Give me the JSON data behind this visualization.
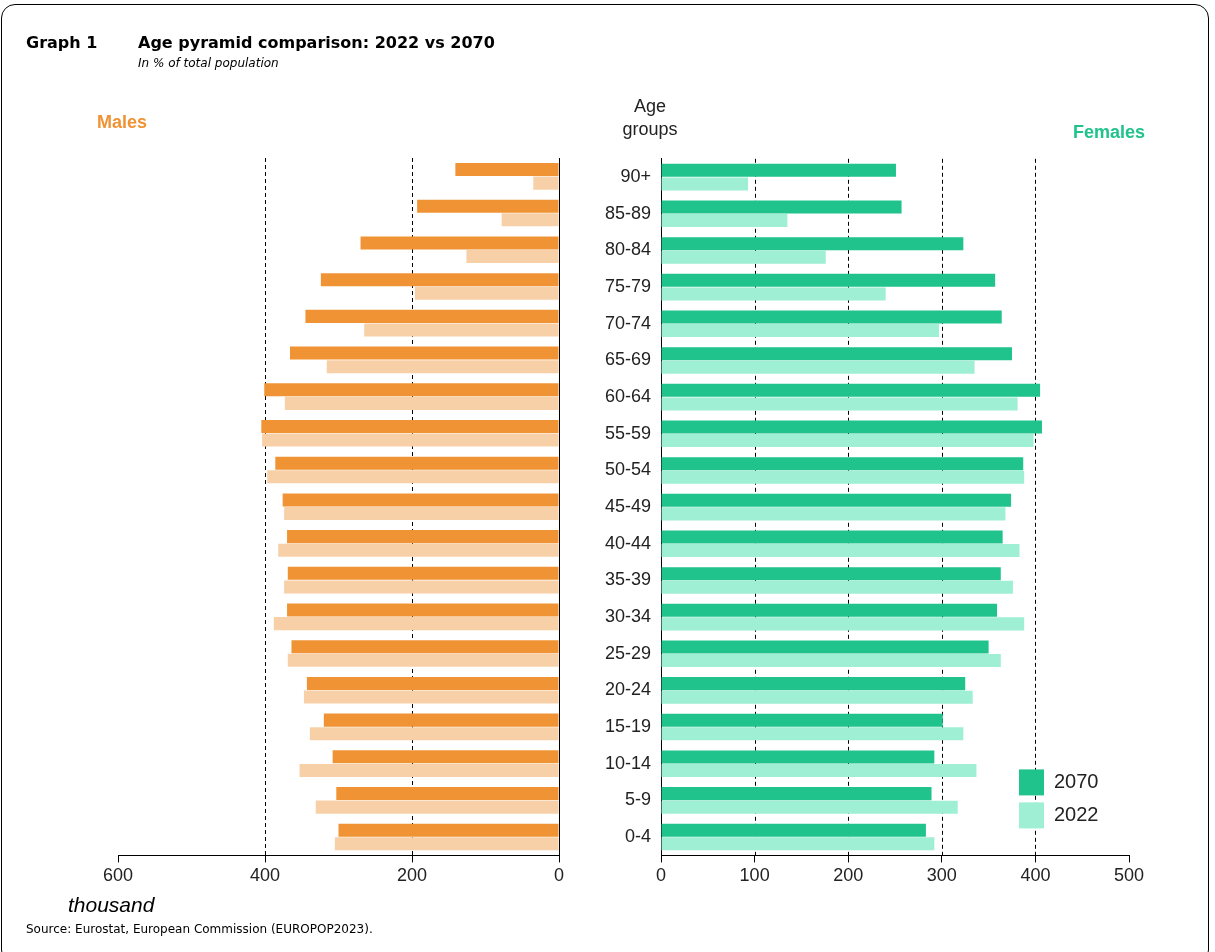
{
  "chart_data": [
    {
      "type": "bar",
      "orientation": "horizontal",
      "title": "Males",
      "annotations": [
        "Graph 1",
        "Age pyramid comparison: 2022 vs 2070",
        "In % of total population",
        "Source: Eurostat, European Commission (EUROPOP2023)."
      ],
      "xlabel": "thousand",
      "categories": [
        null,
        null,
        null,
        null,
        null,
        null,
        null,
        null,
        null,
        null,
        null,
        null,
        null,
        null,
        null,
        null,
        null,
        null,
        null
      ],
      "series": [
        {
          "color": "#ef9334",
          "values": [
            141,
            193,
            270,
            324,
            345,
            366,
            401,
            405,
            386,
            376,
            370,
            369,
            370,
            364,
            343,
            320,
            308,
            303,
            300
          ]
        },
        {
          "color": "#f8d0a8",
          "values": [
            35,
            78,
            126,
            196,
            265,
            316,
            373,
            404,
            397,
            374,
            382,
            374,
            388,
            369,
            347,
            339,
            353,
            331,
            305
          ]
        }
      ],
      "xlim": [
        600,
        0
      ],
      "xticks": [
        600,
        400,
        200,
        0
      ],
      "grid": "x",
      "tick_labels": "x",
      "legend": false
    },
    {
      "type": "bar",
      "orientation": "horizontal",
      "title": "Females",
      "ylabel": "Age groups",
      "categories": [
        "90+",
        "85-89",
        "80-84",
        "75-79",
        "70-74",
        "65-69",
        "60-64",
        "55-59",
        "50-54",
        "45-49",
        "40-44",
        "35-39",
        "30-34",
        "25-29",
        "20-24",
        "15-19",
        "10-14",
        "5-9",
        "0-4"
      ],
      "series": [
        {
          "name": "2070",
          "color": "#1fc38b",
          "values": [
            251,
            257,
            323,
            357,
            364,
            375,
            405,
            407,
            387,
            374,
            365,
            363,
            359,
            350,
            325,
            301,
            292,
            289,
            283
          ]
        },
        {
          "name": "2022",
          "color": "#9eefd4",
          "values": [
            93,
            135,
            176,
            240,
            297,
            335,
            381,
            398,
            388,
            368,
            383,
            376,
            388,
            363,
            333,
            323,
            337,
            317,
            292
          ]
        }
      ],
      "xlim": [
        0,
        500
      ],
      "xticks": [
        0,
        100,
        200,
        300,
        400,
        500
      ],
      "grid": "x",
      "legend": "bottom right"
    }
  ]
}
